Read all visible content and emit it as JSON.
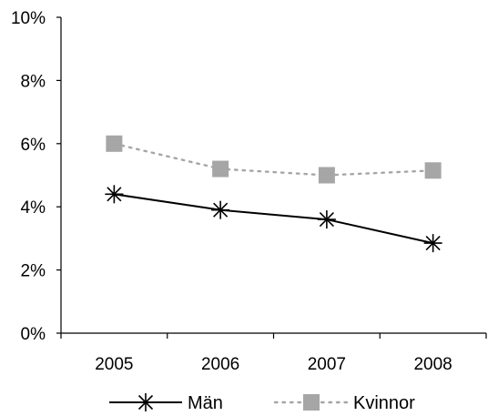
{
  "chart_data": {
    "type": "line",
    "categories": [
      "2005",
      "2006",
      "2007",
      "2008"
    ],
    "y_ticks": [
      "0%",
      "2%",
      "4%",
      "6%",
      "8%",
      "10%"
    ],
    "ylim": [
      0,
      10
    ],
    "y_unit": "%",
    "grid": false,
    "legend_position": "bottom",
    "series": [
      {
        "name": "Män",
        "values": [
          4.4,
          3.9,
          3.6,
          2.85
        ],
        "color": "#000000",
        "line_style": "solid",
        "marker": "asterisk"
      },
      {
        "name": "Kvinnor",
        "values": [
          6.0,
          5.2,
          5.0,
          5.15
        ],
        "color": "#a6a6a6",
        "line_style": "dotted",
        "marker": "square"
      }
    ]
  }
}
